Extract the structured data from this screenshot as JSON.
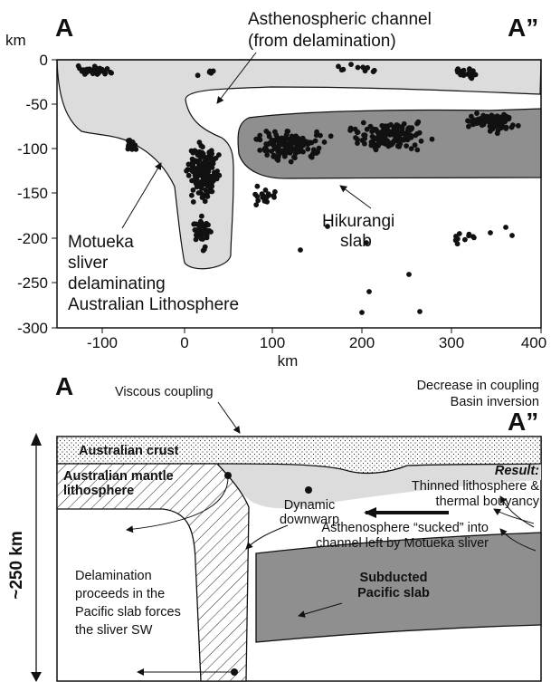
{
  "top_panel": {
    "left_label": "A",
    "right_label": "A”",
    "y_unit": "km",
    "x_unit": "km",
    "y_ticks": [
      "0",
      "-50",
      "-100",
      "-150",
      "-200",
      "-250",
      "-300"
    ],
    "x_ticks": [
      "-100",
      "0",
      "100",
      "200",
      "300",
      "400"
    ],
    "annotations": {
      "channel_line1": "Asthenospheric channel",
      "channel_line2": "(from delamination)",
      "hikurangi_line1": "Hikurangi",
      "hikurangi_line2": "slab",
      "motueka_line1": "Motueka",
      "motueka_line2": "sliver",
      "motueka_line3": "delaminating",
      "motueka_line4": "Australian Lithosphere"
    }
  },
  "bottom_panel": {
    "left_label": "A",
    "right_label": "A”",
    "depth_label": "~250 km",
    "viscous_coupling": "Viscous coupling",
    "decrease_line1": "Decrease in coupling",
    "decrease_line2": "Basin inversion",
    "australian_crust": "Australian crust",
    "mantle_line1": "Australian mantle",
    "mantle_line2": "lithosphere",
    "result_title": "Result:",
    "result_line1": "Thinned lithosphere &",
    "result_line2": "thermal bouyancy",
    "dynamic_line1": "Dynamic",
    "dynamic_line2": "downwarp",
    "asth_line1": "Asthenosphere “sucked” into",
    "asth_line2": "channel left by Motueka sliver",
    "slab_line1": "Subducted",
    "slab_line2": "Pacific slab",
    "deleam_line1": "Delamination",
    "deleam_line2": "proceeds in the",
    "deleam_line3": "Pacific slab forces",
    "deleam_line4": "the sliver SW"
  },
  "colors": {
    "light_fill": "#dcdcdc",
    "dark_fill": "#8f8f8f",
    "dot": "#111111"
  }
}
